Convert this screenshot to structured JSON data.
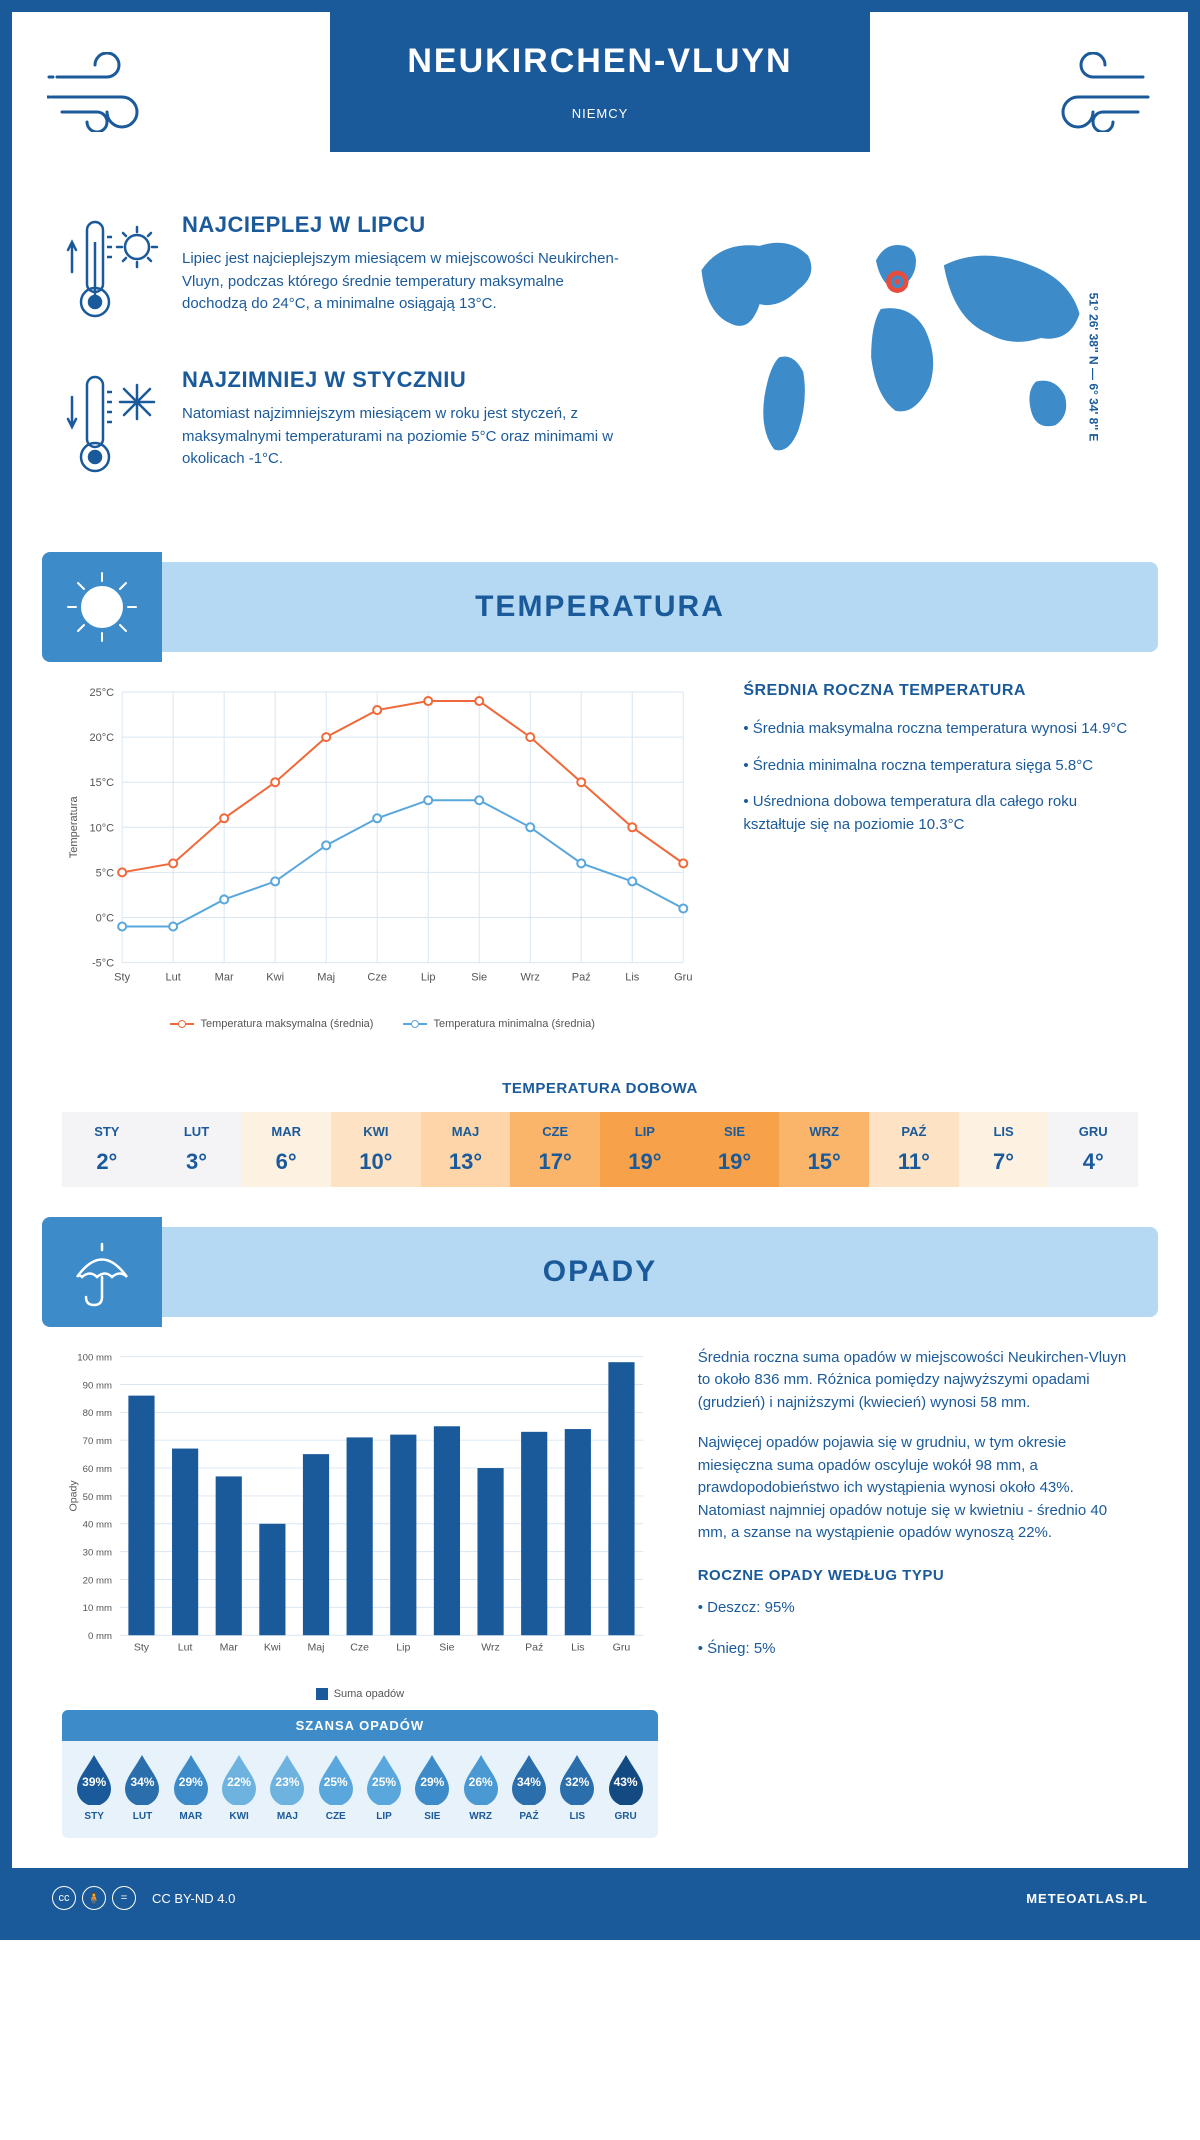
{
  "header": {
    "city": "NEUKIRCHEN-VLUYN",
    "country": "NIEMCY"
  },
  "coords": "51° 26' 38'' N — 6° 34' 8'' E",
  "intro": {
    "hot": {
      "title": "NAJCIEPLEJ W LIPCU",
      "text": "Lipiec jest najcieplejszym miesiącem w miejscowości Neukirchen-Vluyn, podczas którego średnie temperatury maksymalne dochodzą do 24°C, a minimalne osiągają 13°C."
    },
    "cold": {
      "title": "NAJZIMNIEJ W STYCZNIU",
      "text": "Natomiast najzimniejszym miesiącem w roku jest styczeń, z maksymalnymi temperaturami na poziomie 5°C oraz minimami w okolicach -1°C."
    }
  },
  "sections": {
    "temp": "TEMPERATURA",
    "precip": "OPADY"
  },
  "temp_chart": {
    "type": "line",
    "x_labels": [
      "Sty",
      "Lut",
      "Mar",
      "Kwi",
      "Maj",
      "Cze",
      "Lip",
      "Sie",
      "Wrz",
      "Paź",
      "Lis",
      "Gru"
    ],
    "y_label": "Temperatura",
    "ylim": [
      -5,
      25
    ],
    "ytick_step": 5,
    "ytick_labels": [
      "-5°C",
      "0°C",
      "5°C",
      "10°C",
      "15°C",
      "20°C",
      "25°C"
    ],
    "grid_color": "#d9e6f2",
    "series": {
      "max": {
        "label": "Temperatura maksymalna (średnia)",
        "color": "#ef6a3b",
        "values": [
          5,
          6,
          11,
          15,
          20,
          23,
          24,
          24,
          20,
          15,
          10,
          6
        ]
      },
      "min": {
        "label": "Temperatura minimalna (średnia)",
        "color": "#59a7dc",
        "values": [
          -1,
          -1,
          2,
          4,
          8,
          11,
          13,
          13,
          10,
          6,
          4,
          1
        ]
      }
    }
  },
  "temp_info": {
    "title": "ŚREDNIA ROCZNA TEMPERATURA",
    "lines": [
      "• Średnia maksymalna roczna temperatura wynosi 14.9°C",
      "• Średnia minimalna roczna temperatura sięga 5.8°C",
      "• Uśredniona dobowa temperatura dla całego roku kształtuje się na poziomie 10.3°C"
    ]
  },
  "daily": {
    "title": "TEMPERATURA DOBOWA",
    "months": [
      "STY",
      "LUT",
      "MAR",
      "KWI",
      "MAJ",
      "CZE",
      "LIP",
      "SIE",
      "WRZ",
      "PAŹ",
      "LIS",
      "GRU"
    ],
    "values": [
      "2°",
      "3°",
      "6°",
      "10°",
      "13°",
      "17°",
      "19°",
      "19°",
      "15°",
      "11°",
      "7°",
      "4°"
    ],
    "bg_colors": [
      "#f4f4f7",
      "#f4f4f7",
      "#fdf1e2",
      "#fde2c3",
      "#fdd5a8",
      "#fbb56a",
      "#f7a14a",
      "#f7a14a",
      "#fbb56a",
      "#fde2c3",
      "#fdf1e2",
      "#f4f4f7"
    ]
  },
  "precip_chart": {
    "type": "bar",
    "x_labels": [
      "Sty",
      "Lut",
      "Mar",
      "Kwi",
      "Maj",
      "Cze",
      "Lip",
      "Sie",
      "Wrz",
      "Paź",
      "Lis",
      "Gru"
    ],
    "y_label": "Opady",
    "ylim": [
      0,
      100
    ],
    "ytick_step": 10,
    "ytick_suffix": " mm",
    "bar_color": "#1b5a9a",
    "grid_color": "#d9e6f2",
    "legend": "Suma opadów",
    "values": [
      86,
      67,
      57,
      40,
      65,
      71,
      72,
      75,
      60,
      73,
      74,
      98
    ]
  },
  "precip_info": {
    "p1": "Średnia roczna suma opadów w miejscowości Neukirchen-Vluyn to około 836 mm. Różnica pomiędzy najwyższymi opadami (grudzień) i najniższymi (kwiecień) wynosi 58 mm.",
    "p2": "Najwięcej opadów pojawia się w grudniu, w tym okresie miesięczna suma opadów oscyluje wokół 98 mm, a prawdopodobieństwo ich wystąpienia wynosi około 43%. Natomiast najmniej opadów notuje się w kwietniu - średnio 40 mm, a szanse na wystąpienie opadów wynoszą 22%.",
    "type_title": "ROCZNE OPADY WEDŁUG TYPU",
    "rain": "• Deszcz: 95%",
    "snow": "• Śnieg: 5%"
  },
  "chance": {
    "title": "SZANSA OPADÓW",
    "months": [
      "STY",
      "LUT",
      "MAR",
      "KWI",
      "MAJ",
      "CZE",
      "LIP",
      "SIE",
      "WRZ",
      "PAŹ",
      "LIS",
      "GRU"
    ],
    "values": [
      "39%",
      "34%",
      "29%",
      "22%",
      "23%",
      "25%",
      "25%",
      "29%",
      "26%",
      "34%",
      "32%",
      "43%"
    ],
    "drop_colors": [
      "#1b5a9a",
      "#2a6eab",
      "#3d8bc9",
      "#6eb3e0",
      "#6eb3e0",
      "#59a7dc",
      "#59a7dc",
      "#3d8bc9",
      "#4a99d3",
      "#2a6eab",
      "#2a6eab",
      "#134a82"
    ]
  },
  "footer": {
    "license": "CC BY-ND 4.0",
    "brand": "METEOATLAS.PL"
  },
  "colors": {
    "primary": "#1b5a9a",
    "light_band": "#b5d9f2",
    "mid_blue": "#3d8bc9"
  }
}
